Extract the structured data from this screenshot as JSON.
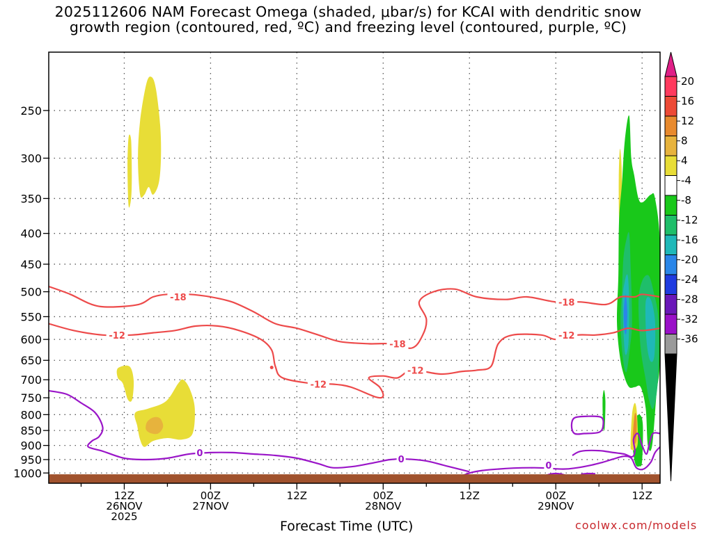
{
  "title": {
    "line1": "2025112606 NAM Forecast Omega (shaded, μbar/s) for KCAI with dendritic snow",
    "line2": "growth region (contoured, red, ºC) and freezing level (contoured, purple, ºC)"
  },
  "credit": "coolwx.com/models",
  "chart_data": {
    "type": "time-height cross section",
    "title": "2025112606 NAM Forecast Omega (shaded, μbar/s) for KCAI with dendritic snow growth region (contoured, red, ºC) and freezing level (contoured, purple, ºC)",
    "xlabel": "Forecast Time (UTC)",
    "ylabel": "",
    "y_scale": "log-pressure (hPa), inverted",
    "y_ticks": [
      "250",
      "300",
      "350",
      "400",
      "450",
      "500",
      "550",
      "600",
      "650",
      "700",
      "750",
      "800",
      "850",
      "900",
      "950",
      "1000"
    ],
    "y_range_hPa": [
      1040,
      200
    ],
    "x_range_hours": [
      -10.5,
      74.5
    ],
    "x_ticks": [
      {
        "hour": 0,
        "lines": [
          "12Z",
          "26NOV",
          "2025"
        ]
      },
      {
        "hour": 12,
        "lines": [
          "00Z",
          "27NOV"
        ]
      },
      {
        "hour": 24,
        "lines": [
          "12Z"
        ]
      },
      {
        "hour": 36,
        "lines": [
          "00Z",
          "28NOV"
        ]
      },
      {
        "hour": 48,
        "lines": [
          "12Z"
        ]
      },
      {
        "hour": 60,
        "lines": [
          "00Z",
          "29NOV"
        ]
      },
      {
        "hour": 72,
        "lines": [
          "12Z"
        ]
      }
    ],
    "grid": true,
    "colorbar": {
      "position": "right",
      "labels": [
        "20",
        "16",
        "12",
        "8",
        "4",
        "-4",
        "-8",
        "-12",
        "-16",
        "-20",
        "-24",
        "-28",
        "-32",
        "-36"
      ],
      "fills": [
        "#ff3a5e",
        "#ed4a36",
        "#e88a2e",
        "#e7b33d",
        "#e8dd37",
        "#ffffff",
        "#19c81a",
        "#1fbe6a",
        "#1fb8b8",
        "#2a86e8",
        "#1f3be0",
        "#6a17b8",
        "#9a10c8",
        "#9a9a9a"
      ],
      "top_arrow": "#e01f87",
      "bottom_arrow": "#000000"
    },
    "omega_regions": [
      {
        "label": "4 to 8",
        "color": "#e8dd37",
        "hours": [
          [
            2.2,
            5.1
          ],
          [
            0.5,
            1.1
          ]
        ],
        "hPa": [
          [
            220,
            345
          ],
          [
            275,
            360
          ]
        ]
      },
      {
        "label": "4 to 8",
        "color": "#e8dd37",
        "hours": [
          [
            -1,
            1.5
          ],
          [
            1.5,
            10
          ]
        ],
        "hPa": [
          [
            665,
            755
          ],
          [
            700,
            905
          ]
        ]
      },
      {
        "label": "8 to 12",
        "color": "#e7b33d",
        "hours": [
          [
            2.9,
            5.4
          ]
        ],
        "hPa": [
          [
            810,
            855
          ]
        ]
      },
      {
        "label": "4 to 12",
        "color": "#e8dd37",
        "hours": [
          [
            68.8,
            69.2
          ],
          [
            70.4,
            71.8
          ]
        ],
        "hPa": [
          [
            290,
            380
          ],
          [
            760,
            905
          ]
        ]
      },
      {
        "label": "-4 to -16",
        "color": "#19c81a",
        "hours": [
          [
            68.5,
            74.5
          ]
        ],
        "hPa": [
          [
            255,
            970
          ]
        ]
      }
    ],
    "series": [
      {
        "name": "-18",
        "color": "#ed4a4a",
        "points": [
          [
            -10.5,
            490
          ],
          [
            -7.5,
            505
          ],
          [
            -4.5,
            525
          ],
          [
            -2,
            530
          ],
          [
            2,
            525
          ],
          [
            4,
            510
          ],
          [
            6,
            505
          ],
          [
            9,
            505
          ],
          [
            12,
            510
          ],
          [
            15,
            520
          ],
          [
            18,
            540
          ],
          [
            21,
            565
          ],
          [
            24,
            575
          ],
          [
            27,
            590
          ],
          [
            30,
            605
          ],
          [
            34,
            610
          ],
          [
            37,
            610
          ],
          [
            40,
            620
          ],
          [
            41.5,
            590
          ],
          [
            42,
            555
          ],
          [
            41,
            520
          ],
          [
            43,
            500
          ],
          [
            46,
            495
          ],
          [
            49,
            510
          ],
          [
            53,
            515
          ],
          [
            56,
            510
          ],
          [
            60,
            520
          ],
          [
            63.5,
            520
          ],
          [
            67,
            525
          ],
          [
            69,
            510
          ],
          [
            71,
            510
          ],
          [
            72,
            505
          ],
          [
            74.5,
            510
          ]
        ],
        "labels": [
          {
            "hour": 7.5,
            "hPa": 510
          },
          {
            "hour": 38,
            "hPa": 610
          },
          {
            "hour": 61.5,
            "hPa": 520
          }
        ]
      },
      {
        "name": "-12",
        "color": "#ed4a4a",
        "points": [
          [
            -10.5,
            565
          ],
          [
            -7,
            580
          ],
          [
            -3,
            590
          ],
          [
            1,
            590
          ],
          [
            4,
            585
          ],
          [
            7,
            580
          ],
          [
            10,
            570
          ],
          [
            13,
            570
          ],
          [
            16,
            580
          ],
          [
            19,
            600
          ],
          [
            20.5,
            625
          ],
          [
            21,
            665
          ],
          [
            22,
            695
          ],
          [
            26,
            710
          ],
          [
            29,
            712
          ],
          [
            31.5,
            720
          ],
          [
            35,
            748
          ],
          [
            36,
            745
          ],
          [
            35.5,
            720
          ],
          [
            34,
            695
          ],
          [
            36,
            690
          ],
          [
            38,
            695
          ],
          [
            40,
            675
          ],
          [
            44,
            685
          ],
          [
            47,
            678
          ],
          [
            49,
            675
          ],
          [
            51,
            665
          ],
          [
            52,
            610
          ],
          [
            54,
            590
          ],
          [
            58,
            590
          ],
          [
            60,
            600
          ],
          [
            63,
            590
          ],
          [
            65.5,
            590
          ],
          [
            68,
            585
          ],
          [
            70,
            575
          ],
          [
            72,
            580
          ],
          [
            74.5,
            575
          ]
        ],
        "labels": [
          {
            "hour": -1,
            "hPa": 590
          },
          {
            "hour": 27,
            "hPa": 712
          },
          {
            "hour": 40.5,
            "hPa": 675
          },
          {
            "hour": 61.5,
            "hPa": 590
          }
        ]
      },
      {
        "name": "0",
        "color": "#9a15c8",
        "points": [
          [
            -10.5,
            730
          ],
          [
            -8,
            740
          ],
          [
            -6,
            765
          ],
          [
            -4,
            795
          ],
          [
            -3,
            840
          ],
          [
            -3.5,
            870
          ],
          [
            -4.5,
            885
          ],
          [
            -5,
            905
          ],
          [
            -3,
            920
          ],
          [
            0,
            945
          ],
          [
            3,
            950
          ],
          [
            6,
            945
          ],
          [
            9,
            930
          ],
          [
            12,
            925
          ],
          [
            15,
            925
          ],
          [
            18,
            930
          ],
          [
            21,
            935
          ],
          [
            24,
            945
          ],
          [
            27,
            965
          ],
          [
            29,
            980
          ],
          [
            32,
            975
          ],
          [
            35,
            960
          ],
          [
            37,
            950
          ],
          [
            39,
            948
          ],
          [
            42,
            955
          ],
          [
            45,
            975
          ],
          [
            48,
            995
          ]
        ],
        "labels": [
          {
            "hour": 10.5,
            "hPa": 925
          },
          {
            "hour": 38.5,
            "hPa": 948
          },
          {
            "hour": 59,
            "hPa": 970
          }
        ]
      }
    ],
    "terrain_surface_hPa": 1005
  }
}
